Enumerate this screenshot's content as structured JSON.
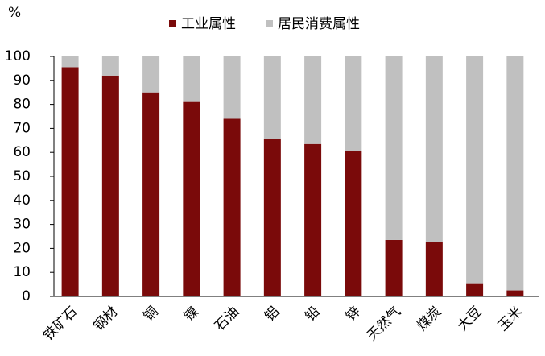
{
  "chart_data": {
    "type": "stacked_bar",
    "y_label": "%",
    "categories": [
      "铁矿石",
      "钢材",
      "铜",
      "镍",
      "石油",
      "铝",
      "铅",
      "锌",
      "天然气",
      "煤炭",
      "大豆",
      "玉米"
    ],
    "series": [
      {
        "name": "工业属性",
        "color": "#7a0a0a",
        "values": [
          95.5,
          92,
          85,
          81,
          74,
          65.5,
          63.5,
          60.5,
          23.5,
          22.5,
          5.5,
          2.5
        ]
      },
      {
        "name": "居民消费属性",
        "color": "#c0c0c0",
        "values": [
          4.5,
          8,
          15,
          19,
          26,
          34.5,
          36.5,
          39.5,
          76.5,
          77.5,
          94.5,
          97.5
        ]
      }
    ],
    "ylim": [
      0,
      100
    ],
    "yticks": [
      0,
      10,
      20,
      30,
      40,
      50,
      60,
      70,
      80,
      90,
      100
    ],
    "grid": false,
    "legend": "top"
  }
}
